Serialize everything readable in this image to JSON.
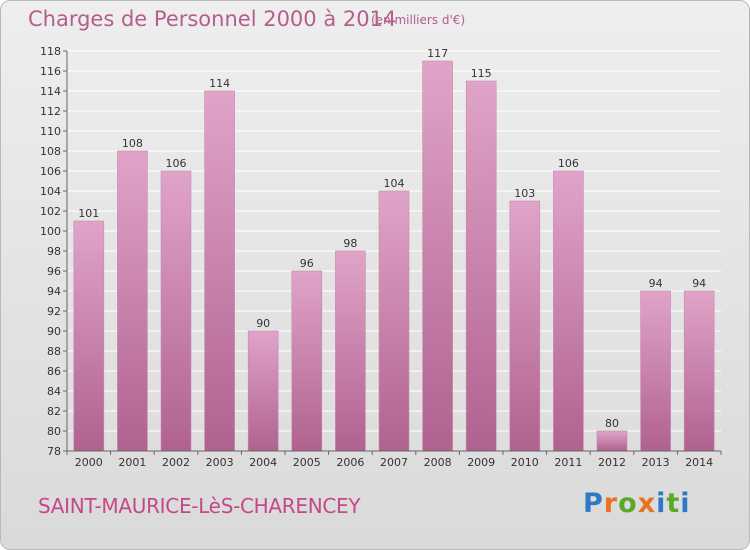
{
  "header": {
    "title": "Charges de Personnel 2000 à 2014",
    "unit": "(en milliers d'€)"
  },
  "footer": {
    "town": "SAINT-MAURICE-LèS-CHARENCEY",
    "logo": "Proxiti"
  },
  "colors": {
    "bar_top": "#e0a4c8",
    "bar_bottom": "#b0628f",
    "text_accent": "#c4488a",
    "logo_letters": [
      "#2f78c6",
      "#e8731f",
      "#5aaa2a",
      "#e8731f",
      "#2f78c6",
      "#5aaa2a",
      "#2f78c6"
    ]
  },
  "chart_data": {
    "type": "bar",
    "title": "Charges de Personnel 2000 à 2014",
    "subtitle": "(en milliers d'€)",
    "categories": [
      "2000",
      "2001",
      "2002",
      "2003",
      "2004",
      "2005",
      "2006",
      "2007",
      "2008",
      "2009",
      "2010",
      "2011",
      "2012",
      "2013",
      "2014"
    ],
    "values": [
      101,
      108,
      106,
      114,
      90,
      96,
      98,
      104,
      117,
      115,
      103,
      106,
      80,
      94,
      94
    ],
    "ylim": [
      78,
      118
    ],
    "yticks": [
      78,
      80,
      82,
      84,
      86,
      88,
      90,
      92,
      94,
      96,
      98,
      100,
      102,
      104,
      106,
      108,
      110,
      112,
      114,
      116,
      118
    ],
    "grid": true,
    "xlabel": "",
    "ylabel": ""
  }
}
